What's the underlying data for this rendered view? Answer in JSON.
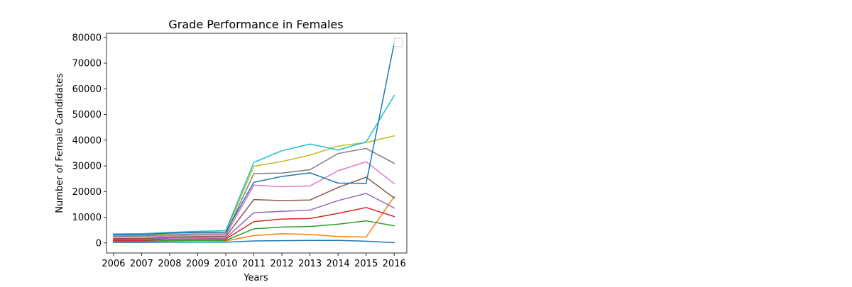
{
  "chart_data": {
    "type": "line",
    "title": "Grade Performance in Females",
    "xlabel": "Years",
    "ylabel": "Number of Female Candidates",
    "x": [
      2006,
      2007,
      2008,
      2009,
      2010,
      2011,
      2012,
      2013,
      2014,
      2015,
      2016
    ],
    "x_tick_labels": [
      "2006",
      "2007",
      "2008",
      "2009",
      "2010",
      "2011",
      "2012",
      "2013",
      "2014",
      "2015",
      "2016"
    ],
    "y_ticks": [
      0,
      10000,
      20000,
      30000,
      40000,
      50000,
      60000,
      70000,
      80000
    ],
    "y_tick_labels": [
      "0",
      "10000",
      "20000",
      "30000",
      "40000",
      "50000",
      "60000",
      "70000",
      "80000"
    ],
    "xlim": [
      2005.75,
      2016.45
    ],
    "ylim": [
      -3900,
      81600
    ],
    "grid": false,
    "legend": "upper-right (empty)",
    "series": [
      {
        "color": "#1f77b4",
        "values": [
          200,
          200,
          300,
          300,
          300,
          800,
          900,
          1000,
          1000,
          700,
          100
        ]
      },
      {
        "color": "#ff7f0e",
        "values": [
          500,
          600,
          800,
          900,
          800,
          2900,
          3600,
          3300,
          2500,
          2300,
          18000
        ]
      },
      {
        "color": "#2ca02c",
        "values": [
          700,
          700,
          900,
          1000,
          1000,
          5500,
          6200,
          6400,
          7300,
          8600,
          6700
        ]
      },
      {
        "color": "#d62728",
        "values": [
          1000,
          1000,
          1400,
          1500,
          1500,
          8300,
          9300,
          9500,
          11500,
          13800,
          10300
        ]
      },
      {
        "color": "#9467bd",
        "values": [
          1400,
          1300,
          1900,
          2000,
          1900,
          11800,
          12300,
          12800,
          16500,
          19300,
          13600
        ]
      },
      {
        "color": "#8c564b",
        "values": [
          1700,
          1700,
          2300,
          2500,
          2500,
          16900,
          16500,
          16700,
          21600,
          25600,
          17500
        ]
      },
      {
        "color": "#e377c2",
        "values": [
          2200,
          2200,
          2800,
          3000,
          3000,
          22500,
          21900,
          22200,
          28100,
          31600,
          23100
        ]
      },
      {
        "color": "#7f7f7f",
        "values": [
          2600,
          2700,
          3200,
          3500,
          3500,
          27000,
          27200,
          28500,
          34800,
          36800,
          31000
        ]
      },
      {
        "color": "#bcbd22",
        "values": [
          3000,
          3100,
          3700,
          4000,
          4100,
          29900,
          31700,
          34200,
          37700,
          39100,
          41700
        ]
      },
      {
        "color": "#17becf",
        "values": [
          3500,
          3600,
          4100,
          4500,
          4800,
          31400,
          35900,
          38500,
          36200,
          39300,
          57400
        ]
      },
      {
        "color": "#1f77b4",
        "values": [
          3200,
          3200,
          3900,
          4100,
          4200,
          23600,
          25900,
          27300,
          23300,
          23200,
          77800
        ]
      }
    ]
  }
}
